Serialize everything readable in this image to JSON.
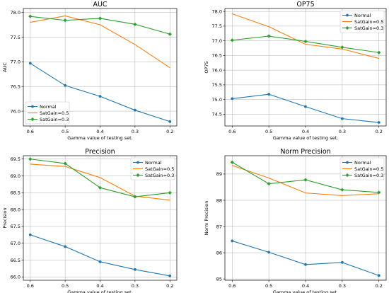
{
  "chart_data": [
    {
      "type": "line",
      "title": "AUC",
      "xlabel": "Gamma value of testing set.",
      "ylabel": "AUC",
      "x": [
        0.6,
        0.5,
        0.4,
        0.3,
        0.2
      ],
      "x_tick_labels": [
        "0.6",
        "0.5",
        "0.4",
        "0.3",
        "0.2"
      ],
      "ylim": [
        75.7,
        78.08
      ],
      "yticks": [
        76.0,
        76.5,
        77.0,
        77.5,
        78.0
      ],
      "y_tick_labels": [
        "76.0",
        "76.5",
        "77.0",
        "77.5",
        "78.0"
      ],
      "grid": true,
      "legend_position": "bottom-left",
      "series": [
        {
          "name": "Normal",
          "color": "#1f77b4",
          "marker": "circle",
          "values": [
            76.97,
            76.52,
            76.3,
            76.02,
            75.79
          ]
        },
        {
          "name": "SatGain=0.5",
          "color": "#ff7f0e",
          "marker": "none",
          "values": [
            77.8,
            77.93,
            77.75,
            77.35,
            76.88
          ]
        },
        {
          "name": "SatGain=0.3",
          "color": "#2ca02c",
          "marker": "diamond",
          "values": [
            77.92,
            77.84,
            77.88,
            77.76,
            77.56
          ]
        }
      ]
    },
    {
      "type": "line",
      "title": "OP75",
      "xlabel": "Gamma value of testing set.",
      "ylabel": "OP75",
      "x": [
        0.6,
        0.5,
        0.4,
        0.3,
        0.2
      ],
      "x_tick_labels": [
        "0.6",
        "0.5",
        "0.4",
        "0.3",
        "0.2"
      ],
      "ylim": [
        74.1,
        78.1
      ],
      "yticks": [
        74.5,
        75.0,
        75.5,
        76.0,
        76.5,
        77.0,
        77.5,
        78.0
      ],
      "y_tick_labels": [
        "74.5",
        "75.0",
        "75.5",
        "76.0",
        "76.5",
        "77.0",
        "77.5",
        "78.0"
      ],
      "grid": true,
      "legend_position": "top-right",
      "series": [
        {
          "name": "Normal",
          "color": "#1f77b4",
          "marker": "circle",
          "values": [
            75.03,
            75.18,
            74.76,
            74.35,
            74.22
          ]
        },
        {
          "name": "SatGain=0.5",
          "color": "#ff7f0e",
          "marker": "none",
          "values": [
            77.92,
            77.48,
            76.88,
            76.72,
            76.4
          ]
        },
        {
          "name": "SatGain=0.3",
          "color": "#2ca02c",
          "marker": "diamond",
          "values": [
            77.02,
            77.16,
            76.98,
            76.78,
            76.6
          ]
        }
      ]
    },
    {
      "type": "line",
      "title": "Precision",
      "xlabel": "Gamma value of testing set.",
      "ylabel": "Precision",
      "x": [
        0.6,
        0.5,
        0.4,
        0.3,
        0.2
      ],
      "x_tick_labels": [
        "0.6",
        "0.5",
        "0.4",
        "0.3",
        "0.2"
      ],
      "ylim": [
        65.9,
        69.6
      ],
      "yticks": [
        66.0,
        66.5,
        67.0,
        67.5,
        68.0,
        68.5,
        69.0,
        69.5
      ],
      "y_tick_labels": [
        "66.0",
        "66.5",
        "67.0",
        "67.5",
        "68.0",
        "68.5",
        "69.0",
        "69.5"
      ],
      "grid": true,
      "legend_position": "top-right",
      "series": [
        {
          "name": "Normal",
          "color": "#1f77b4",
          "marker": "circle",
          "values": [
            67.25,
            66.9,
            66.45,
            66.22,
            66.03
          ]
        },
        {
          "name": "SatGain=0.5",
          "color": "#ff7f0e",
          "marker": "none",
          "values": [
            69.35,
            69.28,
            68.95,
            68.4,
            68.28
          ]
        },
        {
          "name": "SatGain=0.3",
          "color": "#2ca02c",
          "marker": "diamond",
          "values": [
            69.5,
            69.37,
            68.65,
            68.38,
            68.5
          ]
        }
      ]
    },
    {
      "type": "line",
      "title": "Norm Precision",
      "xlabel": "Gamma value of testing set.",
      "ylabel": "Norm Precision",
      "x": [
        0.6,
        0.5,
        0.4,
        0.3,
        0.2
      ],
      "x_tick_labels": [
        "0.6",
        "0.5",
        "0.4",
        "0.3",
        "0.2"
      ],
      "ylim": [
        84.95,
        89.7
      ],
      "yticks": [
        85,
        86,
        87,
        88,
        89
      ],
      "y_tick_labels": [
        "85",
        "86",
        "87",
        "88",
        "89"
      ],
      "grid": true,
      "legend_position": "top-right",
      "series": [
        {
          "name": "Normal",
          "color": "#1f77b4",
          "marker": "circle",
          "values": [
            86.45,
            86.02,
            85.55,
            85.63,
            85.13
          ]
        },
        {
          "name": "SatGain=0.5",
          "color": "#ff7f0e",
          "marker": "none",
          "values": [
            89.33,
            88.85,
            88.28,
            88.18,
            88.25
          ]
        },
        {
          "name": "SatGain=0.3",
          "color": "#2ca02c",
          "marker": "diamond",
          "values": [
            89.45,
            88.63,
            88.78,
            88.4,
            88.3
          ]
        }
      ]
    }
  ]
}
